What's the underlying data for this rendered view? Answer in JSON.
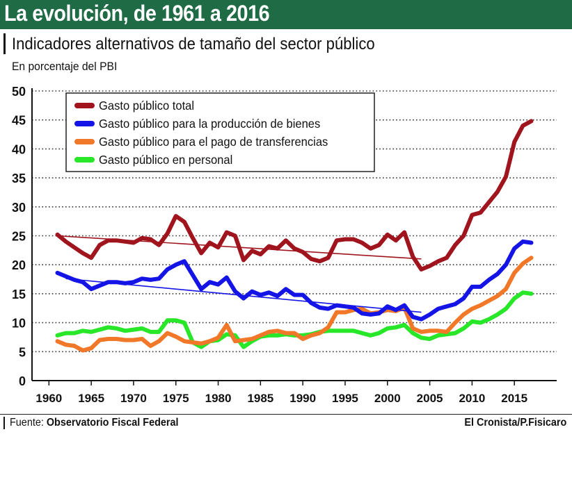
{
  "header": {
    "title": "La evolución, de 1961 a 2016",
    "subtitle": "Indicadores alternativos de tamaño del sector público",
    "unit": "En porcentaje del PBI"
  },
  "footer": {
    "source_label": "Fuente:",
    "source_value": "Observatorio Fiscal Federal",
    "credit": "El Cronista/P.Fisicaro"
  },
  "colors": {
    "banner": "#1f6b45",
    "total": "#a0141e",
    "bienes": "#1414e6",
    "transferencias": "#f07828",
    "personal": "#28e628"
  },
  "chart_data": {
    "type": "line",
    "xlim": [
      1958,
      2020
    ],
    "ylim": [
      0,
      50
    ],
    "yticks": [
      0,
      5,
      10,
      15,
      20,
      25,
      30,
      35,
      40,
      45,
      50
    ],
    "xticks": [
      1960,
      1965,
      1970,
      1975,
      1980,
      1985,
      1990,
      1995,
      2000,
      2005,
      2010,
      2015
    ],
    "grid": "horizontal dotted",
    "legend_position": "top-left",
    "xlabel": "",
    "ylabel": "",
    "x": [
      1961,
      1962,
      1963,
      1964,
      1965,
      1966,
      1967,
      1968,
      1969,
      1970,
      1971,
      1972,
      1973,
      1974,
      1975,
      1976,
      1977,
      1978,
      1979,
      1980,
      1981,
      1982,
      1983,
      1984,
      1985,
      1986,
      1987,
      1988,
      1989,
      1990,
      1991,
      1992,
      1993,
      1994,
      1995,
      1996,
      1997,
      1998,
      1999,
      2000,
      2001,
      2002,
      2003,
      2004,
      2005,
      2006,
      2007,
      2008,
      2009,
      2010,
      2011,
      2012,
      2013,
      2014,
      2015,
      2016,
      2017
    ],
    "series": [
      {
        "name": "Gasto público total",
        "color": "#a0141e",
        "values": [
          25.2,
          24.0,
          23.0,
          22.0,
          21.2,
          23.4,
          24.2,
          24.2,
          24.0,
          23.8,
          24.6,
          24.4,
          23.4,
          25.4,
          28.4,
          27.4,
          24.6,
          22.0,
          23.8,
          23.0,
          25.6,
          25.0,
          20.8,
          22.4,
          21.8,
          23.2,
          22.8,
          24.2,
          22.8,
          22.2,
          21.0,
          20.6,
          21.2,
          24.2,
          24.4,
          24.4,
          23.8,
          22.8,
          23.4,
          25.2,
          24.2,
          25.6,
          21.4,
          19.2,
          19.8,
          20.6,
          21.2,
          23.4,
          25.0,
          28.6,
          29.0,
          30.8,
          32.6,
          35.2,
          41.2,
          44.0,
          44.8
        ],
        "trend": {
          "x": [
            1961,
            2004
          ],
          "y": [
            25.0,
            21.0
          ]
        }
      },
      {
        "name": "Gasto público para la producción de bienes",
        "color": "#1414e6",
        "values": [
          18.6,
          18.0,
          17.4,
          17.0,
          15.8,
          16.4,
          17.0,
          17.0,
          16.8,
          17.0,
          17.6,
          17.4,
          17.6,
          19.2,
          20.0,
          20.6,
          18.2,
          15.8,
          17.0,
          16.6,
          17.8,
          15.4,
          14.2,
          15.4,
          14.8,
          15.2,
          14.6,
          15.8,
          14.8,
          14.8,
          13.4,
          12.6,
          12.4,
          13.0,
          12.8,
          12.6,
          11.6,
          11.4,
          11.6,
          12.8,
          12.2,
          13.0,
          11.0,
          10.6,
          11.4,
          12.4,
          12.8,
          13.2,
          14.2,
          16.2,
          16.2,
          17.4,
          18.4,
          20.0,
          22.8,
          24.0,
          23.8
        ],
        "trend": {
          "x": [
            1962,
            2004
          ],
          "y": [
            17.6,
            11.8
          ]
        }
      },
      {
        "name": "Gasto público para el pago de transferencias",
        "color": "#f07828",
        "values": [
          6.8,
          6.2,
          6.0,
          5.2,
          5.6,
          7.0,
          7.2,
          7.2,
          7.0,
          7.0,
          7.2,
          6.0,
          6.8,
          8.2,
          7.6,
          6.8,
          6.6,
          6.4,
          6.8,
          7.4,
          9.6,
          6.8,
          7.0,
          7.2,
          7.8,
          8.4,
          8.6,
          8.2,
          8.2,
          7.2,
          7.8,
          8.2,
          9.2,
          11.8,
          11.8,
          12.2,
          12.4,
          11.6,
          11.8,
          12.2,
          12.0,
          12.6,
          9.0,
          8.4,
          8.6,
          8.6,
          8.4,
          10.0,
          11.4,
          12.4,
          13.0,
          13.8,
          14.6,
          15.8,
          18.6,
          20.2,
          21.2
        ]
      },
      {
        "name": "Gasto público en personal",
        "color": "#28e628",
        "values": [
          7.8,
          8.2,
          8.2,
          8.6,
          8.4,
          8.8,
          9.2,
          9.0,
          8.6,
          8.8,
          9.0,
          8.4,
          8.4,
          10.4,
          10.4,
          10.0,
          6.6,
          5.8,
          6.8,
          7.0,
          8.0,
          7.8,
          5.8,
          6.8,
          7.6,
          7.8,
          7.8,
          8.0,
          7.8,
          7.8,
          8.0,
          8.4,
          8.6,
          8.6,
          8.6,
          8.6,
          8.2,
          7.8,
          8.2,
          9.0,
          9.2,
          9.6,
          8.2,
          7.4,
          7.2,
          7.8,
          8.0,
          8.2,
          9.0,
          10.2,
          10.0,
          10.6,
          11.4,
          12.4,
          14.2,
          15.2,
          15.0
        ]
      }
    ]
  }
}
